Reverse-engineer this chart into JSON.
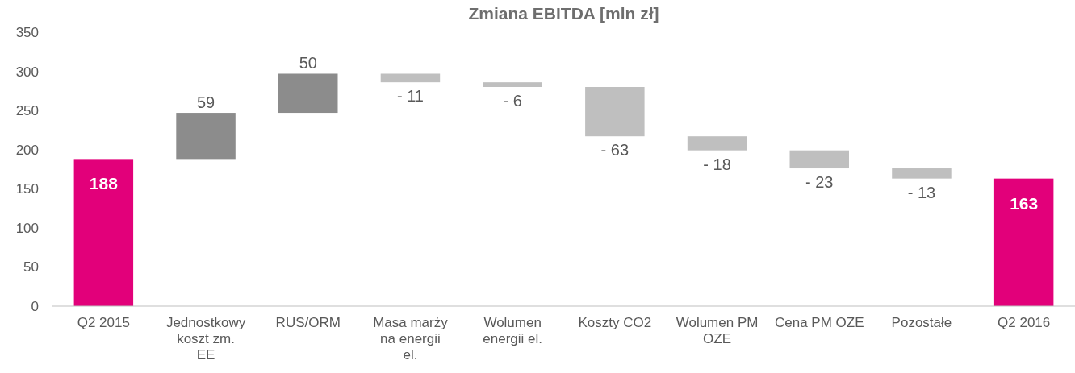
{
  "chart_data": {
    "type": "bar",
    "title": "Zmiana EBITDA [mln zł]",
    "categories": [
      "Q2 2015",
      "Jednostkowy koszt zm. EE",
      "RUS/ORM",
      "Masa marży na energii el.",
      "Wolumen energii el.",
      "Koszty CO2",
      "Wolumen PM OZE",
      "Cena PM OZE",
      "Pozostałe",
      "Q2 2016"
    ],
    "values": [
      188,
      59,
      50,
      -11,
      -6,
      -63,
      -18,
      -23,
      -13,
      163
    ],
    "base": [
      0,
      188,
      247,
      297,
      286,
      280,
      217,
      199,
      176,
      0
    ],
    "colors": [
      "#e2007a",
      "#8c8c8c",
      "#8c8c8c",
      "#bfbfbf",
      "#bfbfbf",
      "#bfbfbf",
      "#bfbfbf",
      "#bfbfbf",
      "#bfbfbf",
      "#e2007a"
    ],
    "value_labels": [
      "188",
      "59",
      "50",
      "- 11",
      "- 6",
      "- 63",
      "- 18",
      "- 23",
      "- 13",
      "163"
    ],
    "ylim": [
      0,
      350
    ],
    "yticks": [
      0,
      50,
      100,
      150,
      200,
      250,
      300,
      350
    ],
    "grid": false
  }
}
